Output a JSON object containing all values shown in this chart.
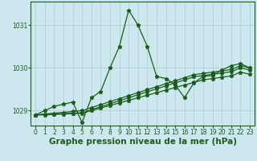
{
  "title": "Graphe pression niveau de la mer (hPa)",
  "background_color": "#cce8ee",
  "grid_color": "#aacccc",
  "line_color": "#1a5c1a",
  "title_bg_color": "#336633",
  "title_text_color": "#ffffff",
  "xlim": [
    -0.5,
    23.5
  ],
  "ylim": [
    1028.65,
    1031.55
  ],
  "yticks": [
    1029,
    1030,
    1031
  ],
  "xticks": [
    0,
    1,
    2,
    3,
    4,
    5,
    6,
    7,
    8,
    9,
    10,
    11,
    12,
    13,
    14,
    15,
    16,
    17,
    18,
    19,
    20,
    21,
    22,
    23
  ],
  "series": [
    {
      "x": [
        0,
        1,
        2,
        3,
        4,
        5,
        6,
        7,
        8,
        9,
        10,
        11,
        12,
        13,
        14,
        15,
        16,
        17,
        18,
        19,
        20,
        21,
        22,
        23
      ],
      "y": [
        1028.9,
        1029.0,
        1029.1,
        1029.15,
        1029.2,
        1028.72,
        1029.3,
        1029.45,
        1030.0,
        1030.5,
        1031.35,
        1031.0,
        1030.5,
        1029.8,
        1029.75,
        1029.6,
        1029.3,
        1029.65,
        1029.8,
        1029.82,
        1029.95,
        1030.05,
        1030.1,
        1030.0
      ]
    },
    {
      "x": [
        0,
        1,
        2,
        3,
        4,
        5,
        6,
        7,
        8,
        9,
        10,
        11,
        12,
        13,
        14,
        15,
        16,
        17,
        18,
        19,
        20,
        21,
        22,
        23
      ],
      "y": [
        1028.9,
        1028.92,
        1028.94,
        1028.96,
        1028.98,
        1029.0,
        1029.07,
        1029.14,
        1029.21,
        1029.28,
        1029.35,
        1029.42,
        1029.49,
        1029.56,
        1029.63,
        1029.7,
        1029.77,
        1029.84,
        1029.87,
        1029.9,
        1029.93,
        1029.96,
        1030.05,
        1030.0
      ]
    },
    {
      "x": [
        0,
        1,
        2,
        3,
        4,
        5,
        6,
        7,
        8,
        9,
        10,
        11,
        12,
        13,
        14,
        15,
        16,
        17,
        18,
        19,
        20,
        21,
        22,
        23
      ],
      "y": [
        1028.9,
        1028.91,
        1028.92,
        1028.93,
        1028.94,
        1028.95,
        1029.02,
        1029.09,
        1029.16,
        1029.23,
        1029.3,
        1029.37,
        1029.44,
        1029.51,
        1029.58,
        1029.65,
        1029.72,
        1029.79,
        1029.82,
        1029.85,
        1029.88,
        1029.91,
        1030.0,
        1029.95
      ]
    },
    {
      "x": [
        0,
        1,
        2,
        3,
        4,
        5,
        6,
        7,
        8,
        9,
        10,
        11,
        12,
        13,
        14,
        15,
        16,
        17,
        18,
        19,
        20,
        21,
        22,
        23
      ],
      "y": [
        1028.9,
        1028.9,
        1028.91,
        1028.92,
        1028.93,
        1028.94,
        1029.0,
        1029.06,
        1029.12,
        1029.18,
        1029.24,
        1029.3,
        1029.36,
        1029.42,
        1029.48,
        1029.54,
        1029.6,
        1029.66,
        1029.72,
        1029.75,
        1029.78,
        1029.81,
        1029.9,
        1029.85
      ]
    }
  ],
  "marker": "*",
  "markersize": 3.5,
  "linewidth": 0.9,
  "tick_fontsize": 5.5,
  "title_fontsize": 7.5
}
